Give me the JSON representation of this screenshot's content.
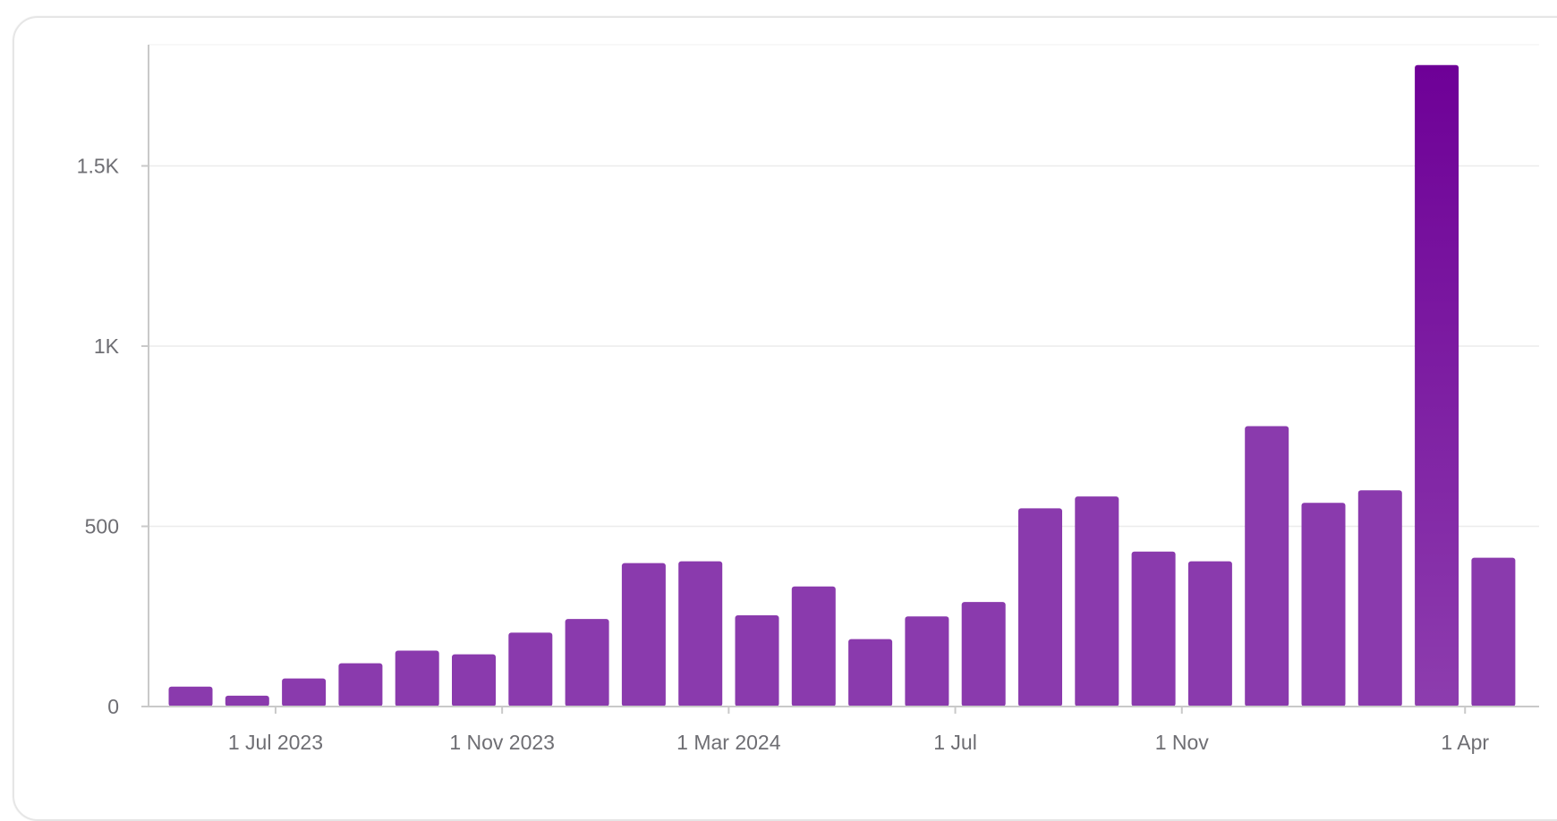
{
  "chart_data": {
    "type": "bar",
    "title": "",
    "xlabel": "",
    "ylabel": "",
    "ylim": [
      0,
      1800
    ],
    "y_ticks": [
      {
        "value": 0,
        "label": "0"
      },
      {
        "value": 500,
        "label": "500"
      },
      {
        "value": 1000,
        "label": "1K"
      },
      {
        "value": 1500,
        "label": "1.5K"
      }
    ],
    "categories": [
      "2023-05",
      "2023-06",
      "2023-07",
      "2023-08",
      "2023-09",
      "2023-10",
      "2023-11",
      "2023-12",
      "2024-01",
      "2024-02",
      "2024-03",
      "2024-04",
      "2024-05",
      "2024-06",
      "2024-07",
      "2024-08",
      "2024-09",
      "2024-10",
      "2024-11",
      "2024-12",
      "2025-01",
      "2025-02",
      "2025-03",
      "2025-04"
    ],
    "values": [
      55,
      30,
      78,
      120,
      155,
      145,
      205,
      243,
      398,
      403,
      253,
      333,
      187,
      250,
      290,
      550,
      583,
      430,
      403,
      778,
      565,
      600,
      1780,
      413
    ],
    "x_ticks": [
      {
        "month": "2023-07",
        "label": "1 Jul 2023"
      },
      {
        "month": "2023-11",
        "label": "1 Nov 2023"
      },
      {
        "month": "2024-03",
        "label": "1 Mar 2024"
      },
      {
        "month": "2024-07",
        "label": "1 Jul"
      },
      {
        "month": "2024-11",
        "label": "1 Nov"
      },
      {
        "month": "2025-04",
        "label": "1 Apr"
      }
    ],
    "grid": true,
    "legend": "none",
    "colors": {
      "bar": "#8a3aad",
      "bar_top": "#6e0097",
      "grid": "#ececec",
      "axis": "#c9c9c9",
      "tick_text": "#6e6e73"
    }
  }
}
